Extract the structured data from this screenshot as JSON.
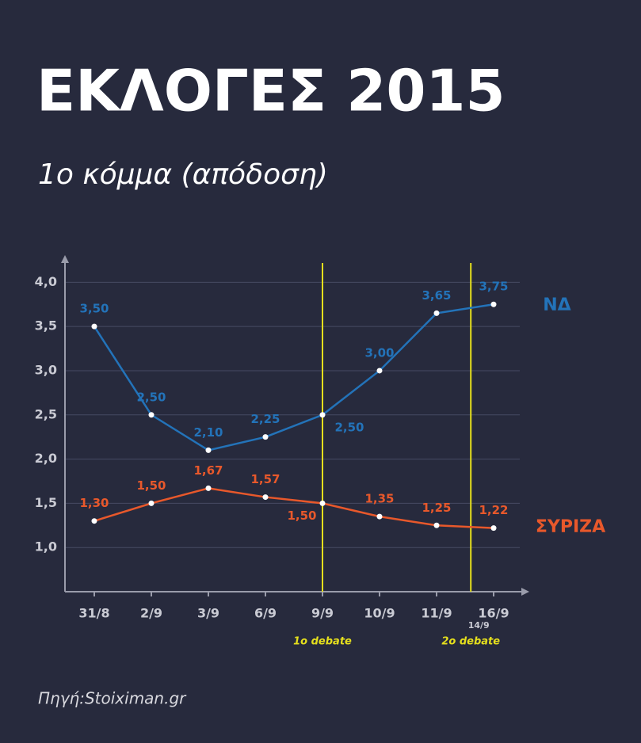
{
  "chart_data": {
    "type": "line",
    "title": "ΕΚΛΟΓΕΣ 2015",
    "subtitle": "1ο κόμμα (απόδοση)",
    "source": "Πηγή:Stoiximan.gr",
    "categories": [
      "31/8",
      "2/9",
      "3/9",
      "6/9",
      "9/9",
      "10/9",
      "11/9",
      "16/9"
    ],
    "series": [
      {
        "name": "ΝΔ",
        "color": "#2373b9",
        "values": [
          3.5,
          2.5,
          2.1,
          2.25,
          2.5,
          3.0,
          3.65,
          3.75
        ],
        "value_labels": [
          "3,50",
          "2,50",
          "2,10",
          "2,25",
          "2,50",
          "3,00",
          "3,65",
          "3,75"
        ]
      },
      {
        "name": "ΣΥΡΙΖΑ",
        "color": "#e8582b",
        "values": [
          1.3,
          1.5,
          1.67,
          1.57,
          1.5,
          1.35,
          1.25,
          1.22
        ],
        "value_labels": [
          "1,30",
          "1,50",
          "1,67",
          "1,57",
          "1,50",
          "1,35",
          "1,25",
          "1,22"
        ]
      }
    ],
    "ylim": [
      0.5,
      4.2
    ],
    "yticks": [
      {
        "value": 1,
        "label": "1,0"
      },
      {
        "value": 1.5,
        "label": "1,5"
      },
      {
        "value": 2,
        "label": "2,0"
      },
      {
        "value": 2.5,
        "label": "2,5"
      },
      {
        "value": 3,
        "label": "3,0"
      },
      {
        "value": 3.5,
        "label": "3,5"
      },
      {
        "value": 4,
        "label": "4,0"
      }
    ],
    "grid": true,
    "annotations": [
      {
        "x": "9/9",
        "label": "1ο debate",
        "color": "#e5df1d"
      },
      {
        "x": "14/9",
        "label": "2ο debate",
        "color": "#e5df1d"
      }
    ]
  }
}
